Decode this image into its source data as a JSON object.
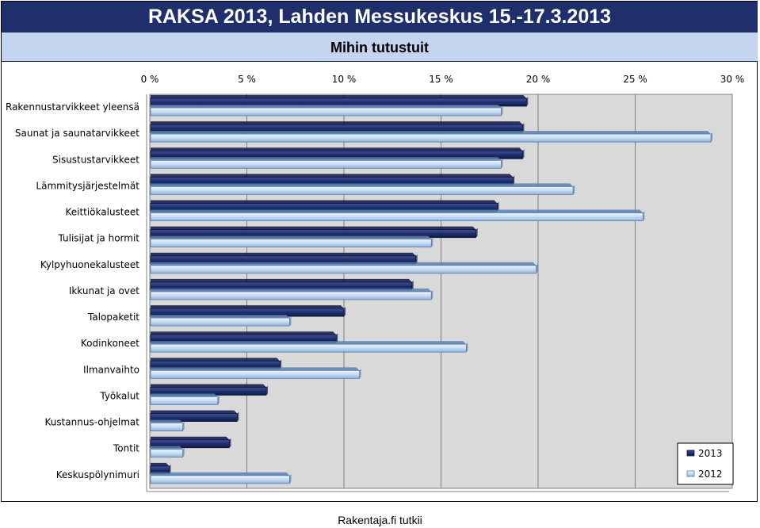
{
  "header": {
    "title": "RAKSA 2013, Lahden Messukeskus 15.-17.3.2013",
    "subtitle": "Mihin tutustuit"
  },
  "footer": {
    "source": "Rakentaja.fi tutkii"
  },
  "colors": {
    "series_2013": "#1f2f6b",
    "series_2012": "#c6dcf2",
    "plot_background": "#d9d9d9",
    "header_background": "#1f2f6b",
    "subtitle_background": "#c5d4ee"
  },
  "chart_data": {
    "type": "bar",
    "orientation": "horizontal",
    "title": "Mihin tutustuit",
    "xlim": [
      0,
      30
    ],
    "x_ticks": [
      "0 %",
      "5 %",
      "10 %",
      "15 %",
      "20 %",
      "25 %",
      "30 %"
    ],
    "grid": true,
    "legend_position": "bottom-right",
    "categories": [
      "Rakennustarvikkeet yleensä",
      "Saunat ja saunatarvikkeet",
      "Sisustustarvikkeet",
      "Lämmitysjärjestelmät",
      "Keittiökalusteet",
      "Tulisijat ja hormit",
      "Kylpyhuonekalusteet",
      "Ikkunat ja ovet",
      "Talopaketit",
      "Kodinkoneet",
      "Ilmanvaihto",
      "Työkalut",
      "Kustannus-ohjelmat",
      "Tontit",
      "Keskuspölynimuri"
    ],
    "series": [
      {
        "name": "2013",
        "values": [
          19.4,
          19.2,
          19.2,
          18.7,
          17.9,
          16.8,
          13.7,
          13.5,
          10.0,
          9.6,
          6.7,
          6.0,
          4.5,
          4.1,
          1.0
        ]
      },
      {
        "name": "2012",
        "values": [
          18.1,
          28.9,
          18.1,
          21.8,
          25.4,
          14.5,
          19.9,
          14.5,
          7.2,
          16.3,
          10.8,
          3.5,
          1.7,
          1.7,
          7.2
        ]
      }
    ]
  }
}
